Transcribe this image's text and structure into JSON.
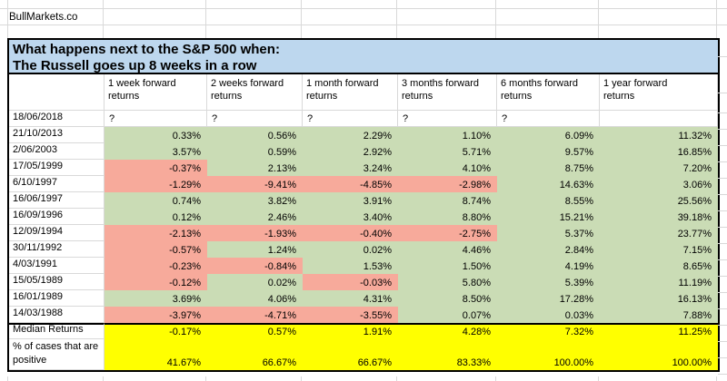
{
  "brand": "BullMarkets.co",
  "title": {
    "line1": "What happens next to the S&P 500 when:",
    "line2": "The Russell goes up 8 weeks in a row"
  },
  "colors": {
    "positive_fill": "#cadcb5",
    "negative_fill": "#f7aa9b",
    "summary_fill": "#ffff00",
    "title_fill": "#bdd7ee",
    "gridline": "#d9d9d9"
  },
  "table": {
    "column_headers": [
      "1 week forward\nreturns",
      "2 weeks forward\nreturns",
      "1 month forward\nreturns",
      "3 months forward\nreturns",
      "6 months forward\nreturns",
      "1 year forward\nreturns"
    ],
    "question_row": {
      "date": "18/06/2018",
      "values": [
        "?",
        "?",
        "?",
        "?",
        "?",
        ""
      ]
    },
    "rows": [
      {
        "date": "21/10/2013",
        "values": [
          "0.33%",
          "0.56%",
          "2.29%",
          "1.10%",
          "6.09%",
          "11.32%"
        ]
      },
      {
        "date": "2/06/2003",
        "values": [
          "3.57%",
          "0.59%",
          "2.92%",
          "5.71%",
          "9.57%",
          "16.85%"
        ]
      },
      {
        "date": "17/05/1999",
        "values": [
          "-0.37%",
          "2.13%",
          "3.24%",
          "4.10%",
          "8.75%",
          "7.20%"
        ]
      },
      {
        "date": "6/10/1997",
        "values": [
          "-1.29%",
          "-9.41%",
          "-4.85%",
          "-2.98%",
          "14.63%",
          "3.06%"
        ]
      },
      {
        "date": "16/06/1997",
        "values": [
          "0.74%",
          "3.82%",
          "3.91%",
          "8.74%",
          "8.55%",
          "25.56%"
        ]
      },
      {
        "date": "16/09/1996",
        "values": [
          "0.12%",
          "2.46%",
          "3.40%",
          "8.80%",
          "15.21%",
          "39.18%"
        ]
      },
      {
        "date": "12/09/1994",
        "values": [
          "-2.13%",
          "-1.93%",
          "-0.40%",
          "-2.75%",
          "5.37%",
          "23.77%"
        ]
      },
      {
        "date": "30/11/1992",
        "values": [
          "-0.57%",
          "1.24%",
          "0.02%",
          "4.46%",
          "2.84%",
          "7.15%"
        ]
      },
      {
        "date": "4/03/1991",
        "values": [
          "-0.23%",
          "-0.84%",
          "1.53%",
          "1.50%",
          "4.19%",
          "8.65%"
        ]
      },
      {
        "date": "15/05/1989",
        "values": [
          "-0.12%",
          "0.02%",
          "-0.03%",
          "5.80%",
          "5.39%",
          "11.19%"
        ]
      },
      {
        "date": "16/01/1989",
        "values": [
          "3.69%",
          "4.06%",
          "4.31%",
          "8.50%",
          "17.28%",
          "16.13%"
        ]
      },
      {
        "date": "14/03/1988",
        "values": [
          "-3.97%",
          "-4.71%",
          "-3.55%",
          "0.07%",
          "0.03%",
          "7.88%"
        ]
      }
    ],
    "median_row": {
      "label": "Median Returns",
      "values": [
        "-0.17%",
        "0.57%",
        "1.91%",
        "4.28%",
        "7.32%",
        "11.25%"
      ]
    },
    "positive_row": {
      "label": "% of cases that are\npositive",
      "values": [
        "41.67%",
        "66.67%",
        "66.67%",
        "83.33%",
        "100.00%",
        "100.00%"
      ]
    }
  }
}
